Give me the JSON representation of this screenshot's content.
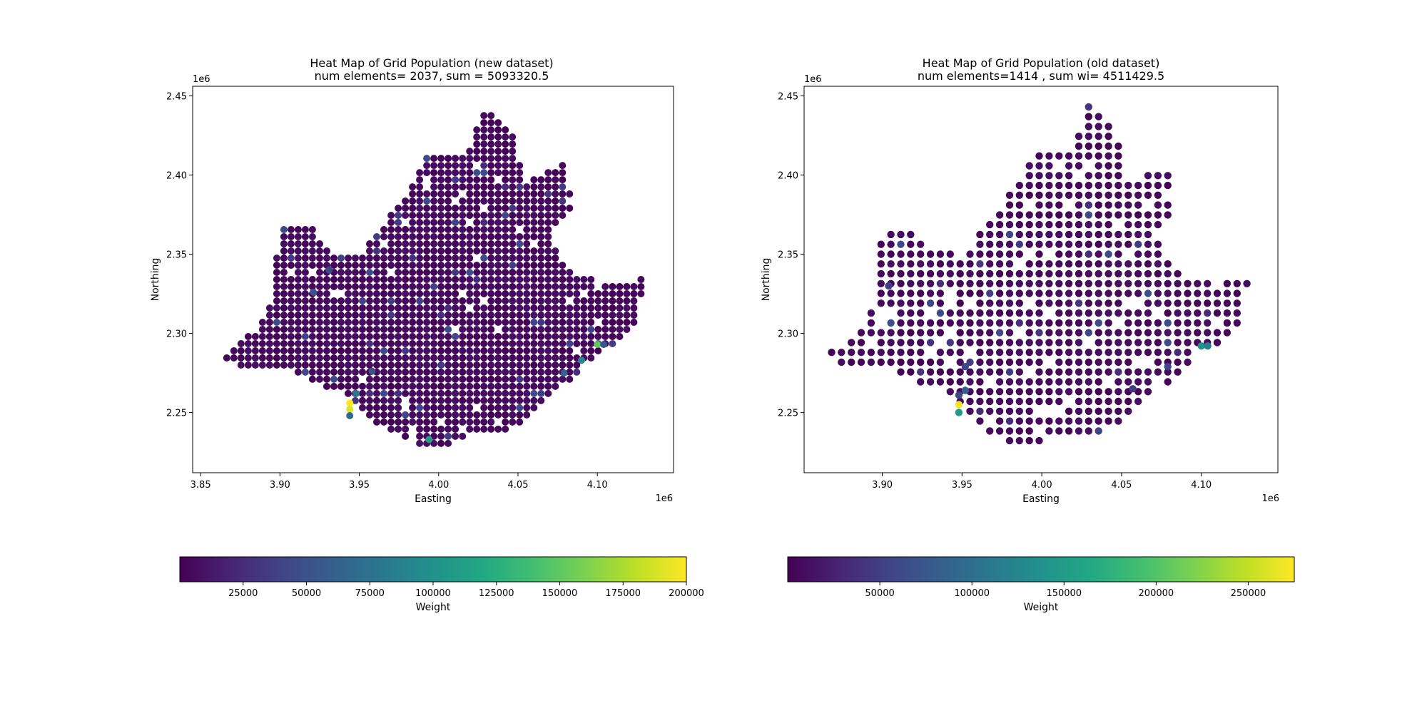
{
  "chart_data": [
    {
      "type": "scatter",
      "title_line1": "Heat Map of Grid Population (new dataset)",
      "title_line2": "num elements= 2037, sum = 5093320.5",
      "xlabel": "Easting",
      "ylabel": "Northing",
      "x_offset_label": "1e6",
      "y_offset_label": "1e6",
      "xlim": [
        3.845,
        4.148
      ],
      "ylim": [
        2.212,
        2.456
      ],
      "xticks": [
        "3.85",
        "3.90",
        "3.95",
        "4.00",
        "4.05",
        "4.10"
      ],
      "yticks": [
        "2.25",
        "2.30",
        "2.35",
        "2.40",
        "2.45"
      ],
      "x_tick_values": [
        3.85,
        3.9,
        3.95,
        4.0,
        4.05,
        4.1
      ],
      "y_tick_values": [
        2.25,
        2.3,
        2.35,
        2.4,
        2.45
      ],
      "grid": false,
      "colormap": "viridis",
      "colorbar": {
        "label": "Weight",
        "range": [
          0,
          200000
        ],
        "ticks": [
          "25000",
          "50000",
          "75000",
          "100000",
          "125000",
          "150000",
          "175000",
          "200000"
        ],
        "tick_values": [
          25000,
          50000,
          75000,
          100000,
          125000,
          150000,
          175000,
          200000
        ]
      },
      "highlights": [
        {
          "x": 3.944,
          "y": 2.256,
          "weight": 200000
        },
        {
          "x": 3.944,
          "y": 2.252,
          "weight": 190000
        },
        {
          "x": 4.1,
          "y": 2.293,
          "weight": 150000
        },
        {
          "x": 3.994,
          "y": 2.233,
          "weight": 110000
        },
        {
          "x": 4.09,
          "y": 2.283,
          "weight": 90000
        },
        {
          "x": 3.948,
          "y": 2.262,
          "weight": 80000
        },
        {
          "x": 3.944,
          "y": 2.248,
          "weight": 70000
        },
        {
          "x": 4.079,
          "y": 2.275,
          "weight": 60000
        },
        {
          "x": 4.104,
          "y": 2.293,
          "weight": 55000
        },
        {
          "x": 3.921,
          "y": 2.326,
          "weight": 50000
        },
        {
          "x": 3.958,
          "y": 2.276,
          "weight": 50000
        },
        {
          "x": 3.931,
          "y": 2.34,
          "weight": 45000
        }
      ]
    },
    {
      "type": "scatter",
      "title_line1": "Heat Map of Grid Population (old dataset)",
      "title_line2": "num elements=1414  , sum wi= 4511429.5",
      "xlabel": "Easting",
      "ylabel": "Northing",
      "x_offset_label": "1e6",
      "y_offset_label": "1e6",
      "xlim": [
        3.851,
        4.148
      ],
      "ylim": [
        2.212,
        2.456
      ],
      "xticks": [
        "3.90",
        "3.95",
        "4.00",
        "4.05",
        "4.10"
      ],
      "yticks": [
        "2.25",
        "2.30",
        "2.35",
        "2.40",
        "2.45"
      ],
      "x_tick_values": [
        3.9,
        3.95,
        4.0,
        4.05,
        4.1
      ],
      "y_tick_values": [
        2.25,
        2.3,
        2.35,
        2.4,
        2.45
      ],
      "grid": false,
      "colormap": "viridis",
      "colorbar": {
        "label": "Weight",
        "range": [
          0,
          275000
        ],
        "ticks": [
          "50000",
          "100000",
          "150000",
          "200000",
          "250000"
        ],
        "tick_values": [
          50000,
          100000,
          150000,
          200000,
          250000
        ]
      },
      "highlights": [
        {
          "x": 3.948,
          "y": 2.255,
          "weight": 270000
        },
        {
          "x": 3.948,
          "y": 2.25,
          "weight": 150000
        },
        {
          "x": 4.1,
          "y": 2.292,
          "weight": 140000
        },
        {
          "x": 4.104,
          "y": 2.292,
          "weight": 120000
        },
        {
          "x": 3.952,
          "y": 2.264,
          "weight": 80000
        },
        {
          "x": 3.948,
          "y": 2.261,
          "weight": 60000
        },
        {
          "x": 3.952,
          "y": 2.279,
          "weight": 60000
        },
        {
          "x": 4.079,
          "y": 2.279,
          "weight": 55000
        },
        {
          "x": 3.904,
          "y": 2.33,
          "weight": 50000
        },
        {
          "x": 4.057,
          "y": 2.265,
          "weight": 50000
        }
      ]
    }
  ]
}
